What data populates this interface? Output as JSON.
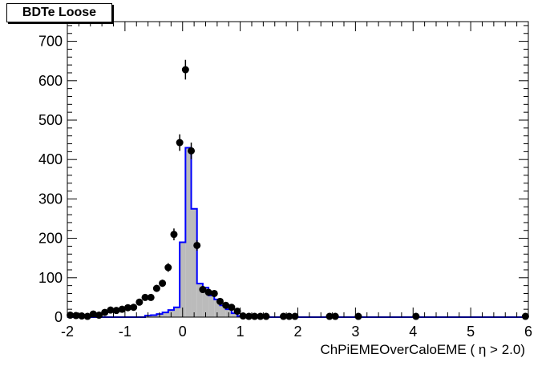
{
  "chart_data": {
    "type": "histogram",
    "title": "BDTe Loose",
    "xlabel": "ChPiEMEOverCaloEME (  η > 2.0)",
    "ylabel": "",
    "xlim": [
      -2,
      6
    ],
    "ylim": [
      0,
      750
    ],
    "x_ticks": [
      "-2",
      "-1",
      "0",
      "1",
      "2",
      "3",
      "4",
      "5",
      "6"
    ],
    "y_ticks": [
      "0",
      "100",
      "200",
      "300",
      "400",
      "500",
      "600",
      "700"
    ],
    "grid": false,
    "legend": "none",
    "bin_width": 0.1,
    "colors": {
      "mc_fill": "#bbbbbb",
      "mc_line": "#0000ff",
      "data_marker": "#000000"
    },
    "mc_histogram": {
      "x": [
        -0.6,
        -0.5,
        -0.4,
        -0.3,
        -0.2,
        -0.1,
        0.0,
        0.1,
        0.2,
        0.3,
        0.4,
        0.5,
        0.6,
        0.7,
        0.8,
        0.9,
        1.0
      ],
      "values": [
        4,
        5,
        8,
        12,
        18,
        25,
        190,
        430,
        275,
        85,
        75,
        55,
        45,
        30,
        20,
        10,
        3
      ]
    },
    "data_points": {
      "x": [
        -1.95,
        -1.85,
        -1.75,
        -1.65,
        -1.55,
        -1.45,
        -1.35,
        -1.25,
        -1.15,
        -1.05,
        -0.95,
        -0.85,
        -0.75,
        -0.65,
        -0.55,
        -0.45,
        -0.35,
        -0.25,
        -0.15,
        -0.05,
        0.05,
        0.15,
        0.25,
        0.35,
        0.45,
        0.55,
        0.65,
        0.75,
        0.85,
        0.95,
        1.05,
        1.15,
        1.25,
        1.35,
        1.45,
        1.75,
        1.85,
        1.95,
        2.55,
        2.65,
        3.05,
        4.05,
        5.95
      ],
      "y": [
        5,
        4,
        3,
        2,
        8,
        5,
        12,
        18,
        17,
        20,
        24,
        25,
        38,
        50,
        50,
        73,
        86,
        126,
        210,
        443,
        628,
        422,
        182,
        70,
        63,
        60,
        40,
        30,
        25,
        15,
        3,
        2,
        2,
        2,
        2,
        2,
        2,
        2,
        2,
        2,
        2,
        2,
        2
      ],
      "errors": [
        2,
        2,
        2,
        1,
        3,
        2,
        3,
        4,
        4,
        4,
        5,
        5,
        6,
        7,
        7,
        9,
        9,
        11,
        15,
        21,
        25,
        21,
        13,
        8,
        8,
        8,
        6,
        5,
        5,
        4,
        2,
        1,
        1,
        1,
        1,
        1,
        1,
        1,
        1,
        1,
        1,
        1,
        1
      ]
    }
  }
}
